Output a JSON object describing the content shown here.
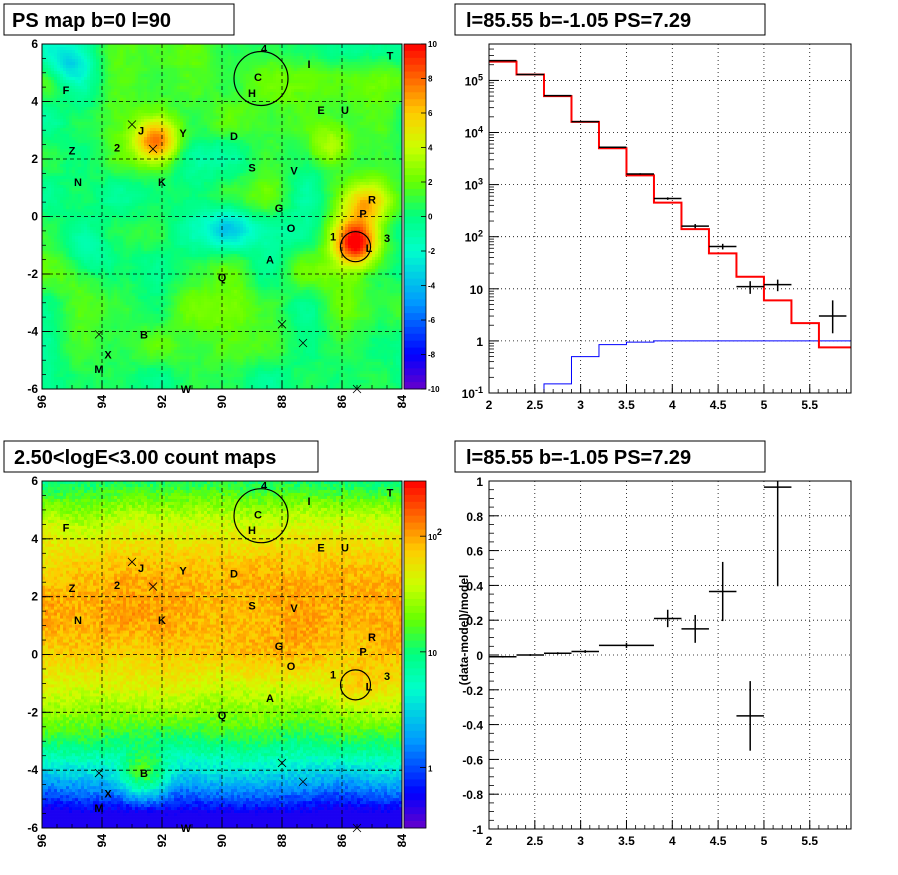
{
  "chart_data": [
    {
      "type": "heatmap",
      "title": "PS map b=0 l=90",
      "x_ticks": [
        "96",
        "94",
        "92",
        "90",
        "88",
        "86",
        "84"
      ],
      "y_ticks": [
        "6",
        "4",
        "2",
        "0",
        "-2",
        "-4",
        "-6"
      ],
      "xlim": [
        96,
        84
      ],
      "ylim": [
        -6,
        6
      ],
      "colorbar_ticks": [
        "10",
        "8",
        "6",
        "4",
        "2",
        "0",
        "-2",
        "-4",
        "-6",
        "-8",
        "-10"
      ],
      "colorbar_range": [
        -10,
        10
      ],
      "grid": true,
      "hotspots": [
        {
          "l": 85.5,
          "b": -0.9,
          "v": 9
        },
        {
          "l": 92.2,
          "b": 2.6,
          "v": 7
        },
        {
          "l": 95.1,
          "b": 5.4,
          "v": -3
        },
        {
          "l": 89.8,
          "b": -0.4,
          "v": -3
        },
        {
          "l": 85.2,
          "b": 0.4,
          "v": 5
        },
        {
          "l": 94.4,
          "b": -1.5,
          "v": -2
        },
        {
          "l": 86.4,
          "b": 2.4,
          "v": 3
        }
      ]
    },
    {
      "type": "line",
      "title": "l=85.55 b=-1.05 PS=7.29",
      "x_ticks": [
        "2",
        "2.5",
        "3",
        "3.5",
        "4",
        "4.5",
        "5",
        "5.5"
      ],
      "xlim": [
        2,
        5.95
      ],
      "yscale": "log",
      "ylim": [
        0.1,
        500000
      ],
      "y_ticks": [
        {
          "v": 100000,
          "base": "10",
          "exp": "5"
        },
        {
          "v": 10000,
          "base": "10",
          "exp": "4"
        },
        {
          "v": 1000,
          "base": "10",
          "exp": "3"
        },
        {
          "v": 100,
          "base": "10",
          "exp": "2"
        },
        {
          "v": 10,
          "label": "10"
        },
        {
          "v": 1,
          "label": "1"
        },
        {
          "v": 0.1,
          "base": "10",
          "exp": "-1"
        }
      ],
      "grid": true,
      "model_step": {
        "color": "#ff0000",
        "edges": [
          2.0,
          2.3,
          2.6,
          2.9,
          3.2,
          3.5,
          3.8,
          4.1,
          4.4,
          4.7,
          5.0,
          5.3,
          5.6,
          5.95
        ],
        "values": [
          230000,
          130000,
          50000,
          16000,
          5000,
          1500,
          450,
          140,
          48,
          17,
          6,
          2.2,
          0.75
        ]
      },
      "background_step": {
        "color": "#0000ff",
        "edges": [
          2.0,
          2.3,
          2.6,
          2.9,
          3.2,
          3.5,
          3.8,
          4.1,
          4.4,
          4.7,
          5.0,
          5.3,
          5.6,
          5.95
        ],
        "values": [
          0.1,
          0.1,
          0.15,
          0.5,
          0.85,
          0.95,
          1.0,
          1.0,
          1.0,
          1.0,
          1.0,
          1.0,
          1.0
        ]
      },
      "data_points": [
        {
          "x": 2.15,
          "xerr": 0.15,
          "y": 240000,
          "ylo": 239000,
          "yhi": 241000
        },
        {
          "x": 2.45,
          "xerr": 0.15,
          "y": 130000,
          "ylo": 129500,
          "yhi": 130500
        },
        {
          "x": 2.75,
          "xerr": 0.15,
          "y": 51000,
          "ylo": 50500,
          "yhi": 51500
        },
        {
          "x": 3.05,
          "xerr": 0.15,
          "y": 16200,
          "ylo": 16000,
          "yhi": 16400
        },
        {
          "x": 3.35,
          "xerr": 0.15,
          "y": 5200,
          "ylo": 5100,
          "yhi": 5300
        },
        {
          "x": 3.65,
          "xerr": 0.15,
          "y": 1600,
          "ylo": 1550,
          "yhi": 1650
        },
        {
          "x": 3.95,
          "xerr": 0.15,
          "y": 540,
          "ylo": 510,
          "yhi": 570
        },
        {
          "x": 4.25,
          "xerr": 0.15,
          "y": 160,
          "ylo": 145,
          "yhi": 175
        },
        {
          "x": 4.55,
          "xerr": 0.15,
          "y": 65,
          "ylo": 57,
          "yhi": 73
        },
        {
          "x": 4.85,
          "xerr": 0.15,
          "y": 11,
          "ylo": 8,
          "yhi": 14
        },
        {
          "x": 5.15,
          "xerr": 0.15,
          "y": 12,
          "ylo": 9,
          "yhi": 15
        },
        {
          "x": 5.75,
          "xerr": 0.15,
          "y": 3,
          "ylo": 1.4,
          "yhi": 6
        }
      ]
    },
    {
      "type": "heatmap",
      "title": "2.50<logE<3.00 count maps",
      "x_ticks": [
        "96",
        "94",
        "92",
        "90",
        "88",
        "86",
        "84"
      ],
      "y_ticks": [
        "6",
        "4",
        "2",
        "0",
        "-2",
        "-4",
        "-6"
      ],
      "xlim": [
        96,
        84
      ],
      "ylim": [
        -6,
        6
      ],
      "colorbar_scale": "log",
      "colorbar_range": [
        0.3,
        300
      ],
      "colorbar_ticks": [
        {
          "v": 100,
          "base": "10",
          "exp": "2"
        },
        {
          "v": 10,
          "label": "10"
        },
        {
          "v": 1,
          "label": "1"
        }
      ],
      "grid": true
    },
    {
      "type": "scatter",
      "title": "l=85.55 b=-1.05 PS=7.29",
      "ylabel": "(data-model)/model",
      "x_ticks": [
        "2",
        "2.5",
        "3",
        "3.5",
        "4",
        "4.5",
        "5",
        "5.5"
      ],
      "y_ticks": [
        "1",
        "0.8",
        "0.6",
        "0.4",
        "0.2",
        "0",
        "-0.2",
        "-0.4",
        "-0.6",
        "-0.8",
        "-1"
      ],
      "xlim": [
        2,
        5.95
      ],
      "ylim": [
        -1,
        1
      ],
      "grid": true,
      "points": [
        {
          "x": 2.15,
          "xerr": 0.15,
          "y": -0.01,
          "yerr": 0.005
        },
        {
          "x": 2.45,
          "xerr": 0.15,
          "y": 0.0,
          "yerr": 0.005
        },
        {
          "x": 2.75,
          "xerr": 0.15,
          "y": 0.01,
          "yerr": 0.006
        },
        {
          "x": 3.05,
          "xerr": 0.15,
          "y": 0.02,
          "yerr": 0.008
        },
        {
          "x": 3.5,
          "xerr": 0.3,
          "y": 0.055,
          "yerr": 0.015
        },
        {
          "x": 3.95,
          "xerr": 0.15,
          "y": 0.21,
          "yerr": 0.05
        },
        {
          "x": 4.25,
          "xerr": 0.15,
          "y": 0.15,
          "yerr": 0.08
        },
        {
          "x": 4.55,
          "xerr": 0.15,
          "y": 0.365,
          "yerr": 0.17
        },
        {
          "x": 4.85,
          "xerr": 0.15,
          "y": -0.35,
          "yerr": 0.2
        },
        {
          "x": 5.15,
          "xerr": 0.15,
          "y": 0.965,
          "yerr": 0.57
        }
      ]
    }
  ],
  "source_labels": [
    {
      "t": "4",
      "l": 88.6,
      "b": 5.85
    },
    {
      "t": "C",
      "l": 88.8,
      "b": 4.85
    },
    {
      "t": "I",
      "l": 87.1,
      "b": 5.3
    },
    {
      "t": "T",
      "l": 84.4,
      "b": 5.6
    },
    {
      "t": "F",
      "l": 95.2,
      "b": 4.4
    },
    {
      "t": "H",
      "l": 89.0,
      "b": 4.3
    },
    {
      "t": "E",
      "l": 86.7,
      "b": 3.7
    },
    {
      "t": "U",
      "l": 85.9,
      "b": 3.7
    },
    {
      "t": "J",
      "l": 92.7,
      "b": 3.0
    },
    {
      "t": "Y",
      "l": 91.3,
      "b": 2.9
    },
    {
      "t": "D",
      "l": 89.6,
      "b": 2.8
    },
    {
      "t": "Z",
      "l": 95.0,
      "b": 2.3
    },
    {
      "t": "2",
      "l": 93.5,
      "b": 2.4
    },
    {
      "t": "S",
      "l": 89.0,
      "b": 1.7
    },
    {
      "t": "V",
      "l": 87.6,
      "b": 1.6
    },
    {
      "t": "N",
      "l": 94.8,
      "b": 1.2
    },
    {
      "t": "K",
      "l": 92.0,
      "b": 1.2
    },
    {
      "t": "G",
      "l": 88.1,
      "b": 0.3
    },
    {
      "t": "R",
      "l": 85.0,
      "b": 0.6
    },
    {
      "t": "P",
      "l": 85.3,
      "b": 0.1
    },
    {
      "t": "O",
      "l": 87.7,
      "b": -0.4
    },
    {
      "t": "1",
      "l": 86.3,
      "b": -0.7
    },
    {
      "t": "3",
      "l": 84.5,
      "b": -0.75
    },
    {
      "t": "L",
      "l": 85.1,
      "b": -1.1
    },
    {
      "t": "A",
      "l": 88.4,
      "b": -1.5
    },
    {
      "t": "Q",
      "l": 90.0,
      "b": -2.1
    },
    {
      "t": "B",
      "l": 92.6,
      "b": -4.1
    },
    {
      "t": "X",
      "l": 93.8,
      "b": -4.8
    },
    {
      "t": "M",
      "l": 94.1,
      "b": -5.3
    },
    {
      "t": "W",
      "l": 91.2,
      "b": -6.0
    }
  ],
  "map_circles": [
    {
      "l": 88.7,
      "b": 4.8,
      "r": 0.9
    },
    {
      "l": 85.55,
      "b": -1.05,
      "r": 0.5
    }
  ],
  "map_crosses": [
    {
      "l": 93.0,
      "b": 3.2
    },
    {
      "l": 92.3,
      "b": 2.35
    },
    {
      "l": 94.1,
      "b": -4.1
    },
    {
      "l": 88.0,
      "b": -3.75
    },
    {
      "l": 87.3,
      "b": -4.4
    },
    {
      "l": 85.5,
      "b": -6.0
    }
  ],
  "colors": {
    "frame": "#000000",
    "grid": "#000000",
    "model": "#ff0000",
    "background": "#0000ff"
  }
}
